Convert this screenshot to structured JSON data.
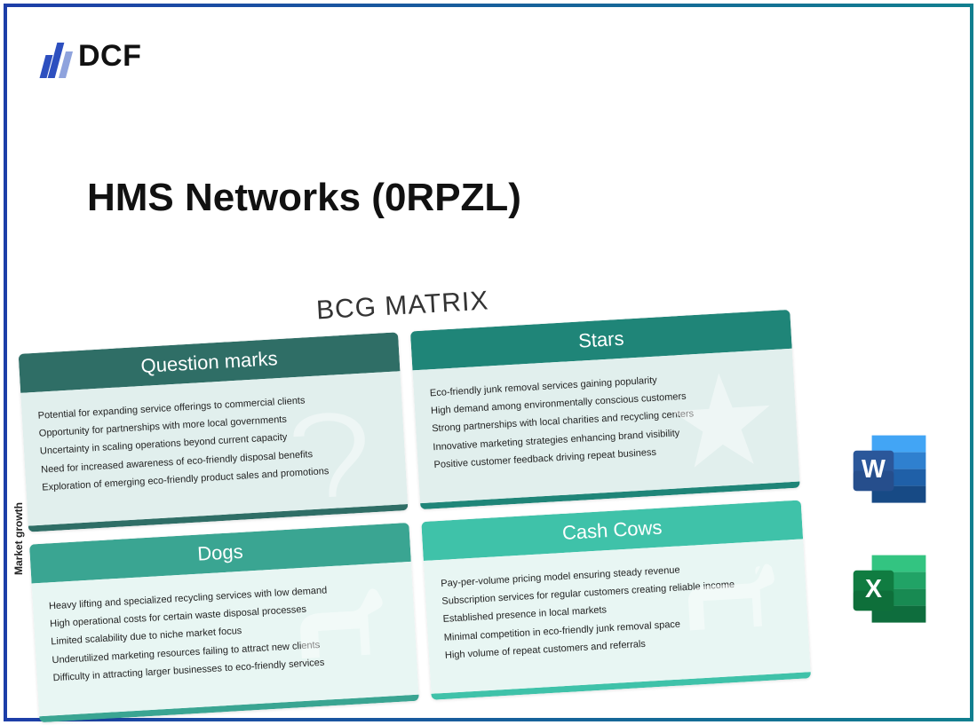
{
  "logo": {
    "text": "DCF",
    "bar_heights": [
      26,
      40,
      30
    ],
    "bar_colors": [
      "#2d4fbf",
      "#2d4fbf",
      "#8fa3dd"
    ]
  },
  "title": "HMS Networks (0RPZL)",
  "axis_label": "Market growth",
  "matrix": {
    "title": "BCG MATRIX",
    "cells": [
      {
        "name": "question-marks",
        "header": "Question marks",
        "header_color": "#2f6e66",
        "body_color": "#e1efed",
        "footer_color": "#2f6e66",
        "items": [
          "Potential for expanding service offerings to commercial clients",
          "Opportunity for partnerships with more local governments",
          "Uncertainty in scaling operations beyond current capacity",
          "Need for increased awareness of eco-friendly disposal benefits",
          "Exploration of emerging eco-friendly product sales and promotions"
        ],
        "watermark": "question"
      },
      {
        "name": "stars",
        "header": "Stars",
        "header_color": "#1f8578",
        "body_color": "#e1efed",
        "footer_color": "#1f8578",
        "items": [
          "Eco-friendly junk removal services gaining popularity",
          "High demand among environmentally conscious customers",
          "Strong partnerships with local charities and recycling centers",
          "Innovative marketing strategies enhancing brand visibility",
          "Positive customer feedback driving repeat business"
        ],
        "watermark": "star"
      },
      {
        "name": "dogs",
        "header": "Dogs",
        "header_color": "#3aa592",
        "body_color": "#e8f6f3",
        "footer_color": "#3aa592",
        "items": [
          "Heavy lifting and specialized recycling services with low demand",
          "High operational costs for certain waste disposal processes",
          "Limited scalability due to niche market focus",
          "Underutilized marketing resources failing to attract new clients",
          "Difficulty in attracting larger businesses to eco-friendly services"
        ],
        "watermark": "dog"
      },
      {
        "name": "cash-cows",
        "header": "Cash Cows",
        "header_color": "#3fc2a9",
        "body_color": "#e8f6f3",
        "footer_color": "#3fc2a9",
        "items": [
          "Pay-per-volume pricing model ensuring steady revenue",
          "Subscription services for regular customers creating reliable income",
          "Established presence in local markets",
          "Minimal competition in eco-friendly junk removal space",
          "High volume of repeat customers and referrals"
        ],
        "watermark": "cow"
      }
    ]
  },
  "file_icons": {
    "word": {
      "letter": "W",
      "front_color": "#2b579a",
      "front_dark": "#1e3e73",
      "page_colors": [
        "#42a5f5",
        "#2f80cf",
        "#1f60a8",
        "#174a85"
      ]
    },
    "excel": {
      "letter": "X",
      "front_color": "#107c41",
      "front_dark": "#0b5a2e",
      "page_colors": [
        "#33c481",
        "#21a366",
        "#188a52",
        "#0e6d3d"
      ]
    }
  }
}
